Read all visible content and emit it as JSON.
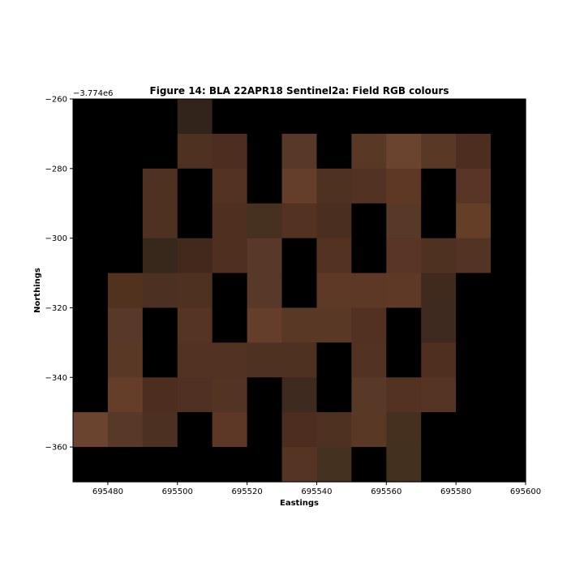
{
  "chart_data": {
    "type": "heatmap",
    "title": "Figure 14: BLA 22APR18  Sentinel2a: Field RGB colours",
    "xlabel": "Eastings",
    "ylabel": "Northings",
    "y_offset_label": "−3.774e6",
    "xlim": [
      695470,
      695600
    ],
    "ylim": [
      -370,
      -260
    ],
    "x_ticks": [
      695480,
      695500,
      695520,
      695540,
      695560,
      695580,
      695600
    ],
    "y_ticks": [
      -260,
      -280,
      -300,
      -320,
      -340,
      -360
    ],
    "x_tick_labels": [
      "695480",
      "695500",
      "695520",
      "695540",
      "695560",
      "695580",
      "695600"
    ],
    "y_tick_labels": [
      "−260",
      "−280",
      "−300",
      "−320",
      "−340",
      "−360"
    ],
    "cell_size": 10,
    "x_centers": [
      695475,
      695485,
      695495,
      695505,
      695515,
      695525,
      695535,
      695545,
      695555,
      695565,
      695575,
      695585,
      695595
    ],
    "y_centers": [
      -265,
      -275,
      -285,
      -295,
      -305,
      -315,
      -325,
      -335,
      -345,
      -355,
      -365
    ],
    "colors": [
      [
        "#000000",
        "#000000",
        "#000000",
        "#32241a",
        "#000000",
        "#000000",
        "#000000",
        "#000000",
        "#000000",
        "#000000",
        "#000000",
        "#000000",
        "#000000"
      ],
      [
        "#000000",
        "#000000",
        "#000000",
        "#4f3122",
        "#4c2d1f",
        "#000000",
        "#573829",
        "#000000",
        "#5a3826",
        "#6b4430",
        "#5a3826",
        "#4c2d1f",
        "#000000"
      ],
      [
        "#000000",
        "#000000",
        "#4f3122",
        "#000000",
        "#533222",
        "#000000",
        "#643e2a",
        "#4f3122",
        "#523222",
        "#5e3825",
        "#000000",
        "#583524",
        "#000000"
      ],
      [
        "#000000",
        "#000000",
        "#4f3122",
        "#000000",
        "#4f2f20",
        "#46301f",
        "#533222",
        "#4a2e1f",
        "#000000",
        "#583826",
        "#000000",
        "#653e28",
        "#000000"
      ],
      [
        "#000000",
        "#000000",
        "#38271b",
        "#43291c",
        "#4f2f20",
        "#573829",
        "#000000",
        "#533222",
        "#000000",
        "#583524",
        "#4f3122",
        "#533424",
        "#000000"
      ],
      [
        "#000000",
        "#50321f",
        "#4c3021",
        "#4f3122",
        "#000000",
        "#573829",
        "#000000",
        "#5e3a26",
        "#5d3826",
        "#5e3a26",
        "#3f2a1d",
        "#000000",
        "#000000"
      ],
      [
        "#000000",
        "#573829",
        "#000000",
        "#553424",
        "#000000",
        "#643e2a",
        "#5a3826",
        "#5a3826",
        "#523022",
        "#000000",
        "#3f2a1f",
        "#000000",
        "#000000"
      ],
      [
        "#000000",
        "#5a3826",
        "#000000",
        "#523222",
        "#523222",
        "#4f3122",
        "#4f3122",
        "#000000",
        "#523222",
        "#000000",
        "#4f2f20",
        "#000000",
        "#000000"
      ],
      [
        "#000000",
        "#653e2a",
        "#4c2d20",
        "#4f3022",
        "#533424",
        "#000000",
        "#3f2a1f",
        "#000000",
        "#583826",
        "#533222",
        "#553424",
        "#000000",
        "#000000"
      ],
      [
        "#6b4430",
        "#573829",
        "#4c3021",
        "#000000",
        "#5d3826",
        "#000000",
        "#4c2d20",
        "#4f3122",
        "#5a3826",
        "#453020",
        "#000000",
        "#000000",
        "#000000"
      ],
      [
        "#000000",
        "#000000",
        "#000000",
        "#000000",
        "#000000",
        "#000000",
        "#553424",
        "#45311f",
        "#000000",
        "#43301f",
        "#000000",
        "#000000",
        "#000000"
      ]
    ]
  }
}
